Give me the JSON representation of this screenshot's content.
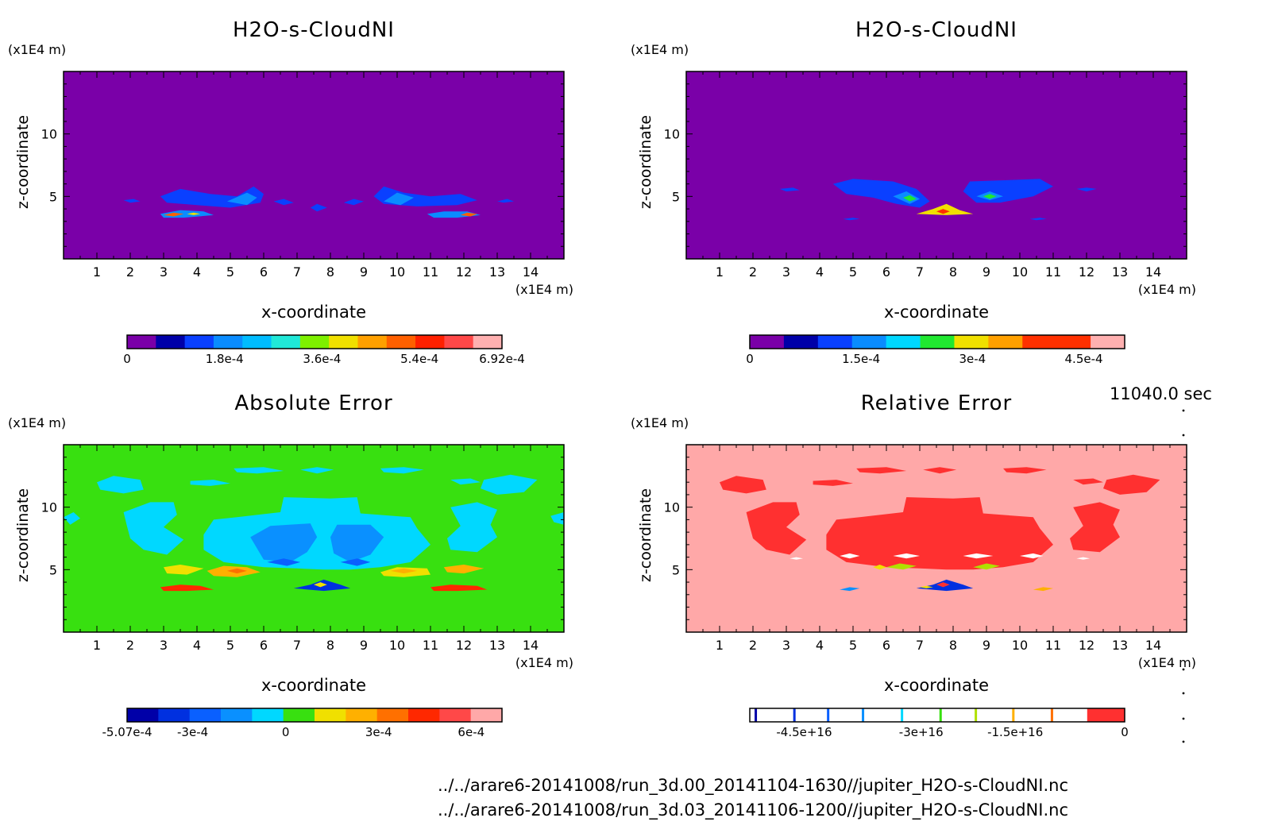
{
  "chart_data": [
    {
      "type": "heatmap",
      "panel": "top-left",
      "title": "H2O-s-CloudNI",
      "xlabel": "x-coordinate",
      "ylabel": "z-coordinate",
      "x_unit": "(x1E4 m)",
      "y_unit": "(x1E4 m)",
      "xlim": [
        0,
        15
      ],
      "ylim": [
        0,
        15
      ],
      "xticks": [
        1,
        2,
        3,
        4,
        5,
        6,
        7,
        8,
        9,
        10,
        11,
        12,
        13,
        14
      ],
      "yticks": [
        5,
        10
      ],
      "background": "#7a00a8",
      "colorbar": {
        "colors": [
          "#7a00a8",
          "#0000a8",
          "#0a40ff",
          "#0a8cff",
          "#00bcff",
          "#20e8d8",
          "#7ef000",
          "#f0e000",
          "#ffa000",
          "#ff6000",
          "#ff2000",
          "#ff4848",
          "#ffb0b0"
        ],
        "tick_labels": [
          "0",
          "1.8e-4",
          "3.6e-4",
          "5.4e-4",
          "6.92e-4"
        ],
        "tick_fractions": [
          0,
          0.26,
          0.52,
          0.78,
          1.0
        ]
      }
    },
    {
      "type": "heatmap",
      "panel": "top-right",
      "title": "H2O-s-CloudNI",
      "xlabel": "x-coordinate",
      "ylabel": "z-coordinate",
      "x_unit": "(x1E4 m)",
      "y_unit": "(x1E4 m)",
      "xlim": [
        0,
        15
      ],
      "ylim": [
        0,
        15
      ],
      "xticks": [
        1,
        2,
        3,
        4,
        5,
        6,
        7,
        8,
        9,
        10,
        11,
        12,
        13,
        14
      ],
      "yticks": [
        5,
        10
      ],
      "background": "#7a00a8",
      "colorbar": {
        "colors": [
          "#7a00a8",
          "#0000a8",
          "#0a40ff",
          "#0a8cff",
          "#00d8ff",
          "#20e830",
          "#f0e000",
          "#ffa000",
          "#ff3000",
          "#ff3000",
          "#ffb0b0"
        ],
        "tick_labels": [
          "0",
          "1.5e-4",
          "3e-4",
          "4.5e-4"
        ],
        "tick_fractions": [
          0,
          0.297,
          0.594,
          0.891
        ]
      }
    },
    {
      "type": "heatmap",
      "panel": "bottom-left",
      "title": "Absolute Error",
      "xlabel": "x-coordinate",
      "ylabel": "z-coordinate",
      "x_unit": "(x1E4 m)",
      "y_unit": "(x1E4 m)",
      "xlim": [
        0,
        15
      ],
      "ylim": [
        0,
        15
      ],
      "xticks": [
        1,
        2,
        3,
        4,
        5,
        6,
        7,
        8,
        9,
        10,
        11,
        12,
        13,
        14
      ],
      "yticks": [
        5,
        10
      ],
      "background": "#38e010",
      "colorbar": {
        "colors": [
          "#0000a8",
          "#0030e0",
          "#0a60ff",
          "#0a90ff",
          "#00d8ff",
          "#38e010",
          "#f0e000",
          "#ffb000",
          "#ff7000",
          "#ff2800",
          "#ff4848",
          "#ffa8a8"
        ],
        "tick_labels": [
          "-5.07e-4",
          "-3e-4",
          "0",
          "3e-4",
          "6e-4"
        ],
        "tick_fractions": [
          0,
          0.175,
          0.423,
          0.671,
          0.918
        ]
      }
    },
    {
      "type": "heatmap",
      "panel": "bottom-right",
      "title": "Relative Error",
      "xlabel": "x-coordinate",
      "ylabel": "z-coordinate",
      "x_unit": "(x1E4 m)",
      "y_unit": "(x1E4 m)",
      "xlim": [
        0,
        15
      ],
      "ylim": [
        0,
        15
      ],
      "xticks": [
        1,
        2,
        3,
        4,
        5,
        6,
        7,
        8,
        9,
        10,
        11,
        12,
        13,
        14
      ],
      "yticks": [
        5,
        10
      ],
      "background": "#ffa8a8",
      "colorbar": {
        "tick_labels": [
          "-4.5e+16",
          "-3e+16",
          "-1.5e+16",
          "0"
        ],
        "tick_fractions": [
          0.145,
          0.457,
          0.708,
          1.0
        ],
        "thin_line_fractions": [
          0.016,
          0.119,
          0.209,
          0.302,
          0.406,
          0.509,
          0.603,
          0.703,
          0.806
        ],
        "thin_line_colors": [
          "#0000a8",
          "#0030e0",
          "#0a60ff",
          "#0a90ff",
          "#00d8ff",
          "#38e010",
          "#b0e000",
          "#ffb000",
          "#ff7000"
        ],
        "red_block_fraction": 0.9,
        "red_color": "#ff3030"
      }
    }
  ],
  "time_label": "11040.0 sec",
  "file_paths": [
    "../../arare6-20141008/run_3d.00_20141104-1630//jupiter_H2O-s-CloudNI.nc",
    "../../arare6-20141008/run_3d.03_20141106-1200//jupiter_H2O-s-CloudNI.nc"
  ]
}
